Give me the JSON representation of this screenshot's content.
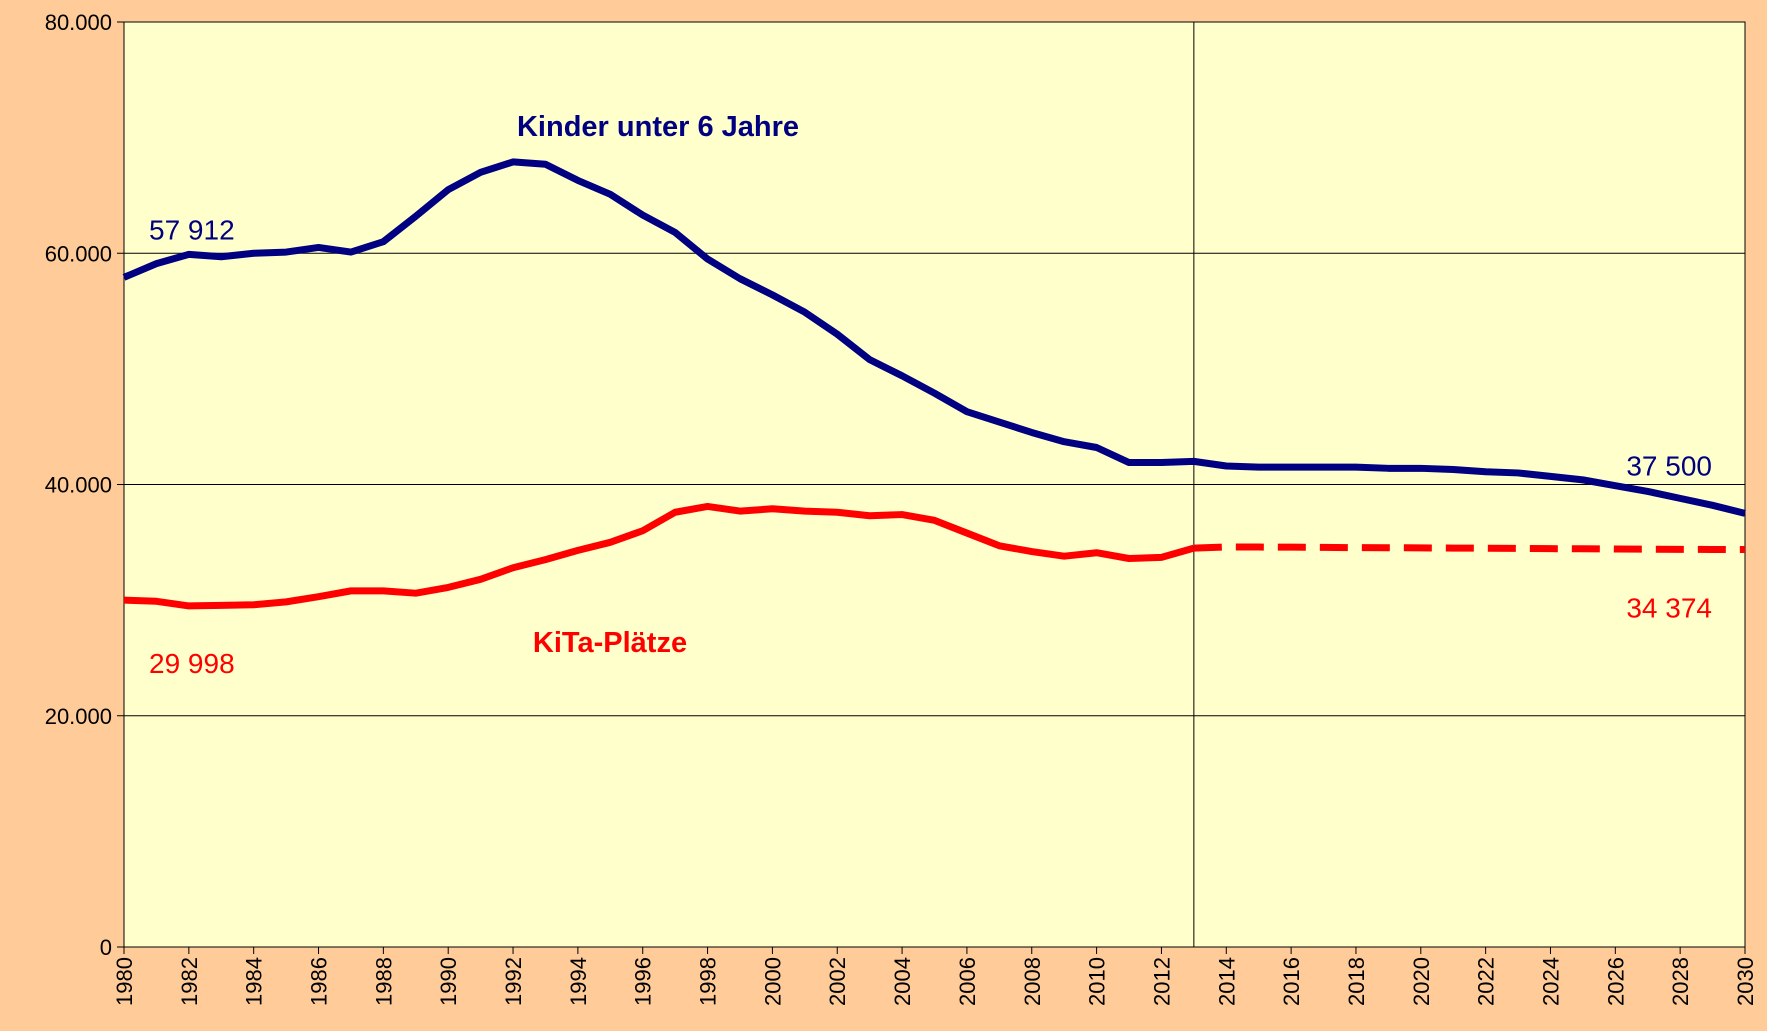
{
  "chart_data": {
    "type": "line",
    "x": [
      1980,
      1981,
      1982,
      1983,
      1984,
      1985,
      1986,
      1987,
      1988,
      1989,
      1990,
      1991,
      1992,
      1993,
      1994,
      1995,
      1996,
      1997,
      1998,
      1999,
      2000,
      2001,
      2002,
      2003,
      2004,
      2005,
      2006,
      2007,
      2008,
      2009,
      2010,
      2011,
      2012,
      2013,
      2014,
      2015,
      2016,
      2017,
      2018,
      2019,
      2020,
      2021,
      2022,
      2023,
      2024,
      2025,
      2026,
      2027,
      2028,
      2029,
      2030
    ],
    "series": [
      {
        "name": "Kinder unter 6 Jahre",
        "color": "#000080",
        "values": [
          57912,
          59100,
          59900,
          59700,
          60000,
          60100,
          60500,
          60100,
          61000,
          63200,
          65500,
          67000,
          67900,
          67700,
          66300,
          65100,
          63300,
          61800,
          59500,
          57800,
          56400,
          54900,
          53000,
          50800,
          49400,
          47900,
          46300,
          45400,
          44500,
          43700,
          43200,
          41900,
          41900,
          42000,
          41600,
          41500,
          41500,
          41500,
          41500,
          41400,
          41400,
          41300,
          41100,
          41000,
          40700,
          40400,
          39900,
          39400,
          38800,
          38200,
          37500
        ],
        "value_labels": [
          "57 912",
          null,
          null,
          null,
          null,
          null,
          null,
          null,
          null,
          null,
          null,
          null,
          null,
          null,
          null,
          null,
          null,
          null,
          null,
          null,
          null,
          null,
          null,
          null,
          null,
          null,
          null,
          null,
          null,
          null,
          null,
          null,
          null,
          null,
          null,
          null,
          null,
          null,
          null,
          null,
          null,
          null,
          null,
          null,
          null,
          null,
          null,
          null,
          null,
          null,
          "37 500"
        ]
      },
      {
        "name": "KiTa-Plätze",
        "color": "#FF0000",
        "dashed_from": 2013,
        "values": [
          29998,
          29900,
          29500,
          29550,
          29600,
          29850,
          30300,
          30800,
          30800,
          30600,
          31100,
          31800,
          32800,
          33500,
          34300,
          35000,
          36000,
          37600,
          38100,
          37700,
          37900,
          37700,
          37600,
          37300,
          37400,
          36900,
          35800,
          34700,
          34200,
          33800,
          34100,
          33600,
          33700,
          34500,
          34600,
          34590,
          34580,
          34560,
          34540,
          34530,
          34520,
          34500,
          34490,
          34470,
          34450,
          34440,
          34420,
          34410,
          34390,
          34380,
          34374
        ],
        "value_labels": [
          "29 998",
          null,
          null,
          null,
          null,
          null,
          null,
          null,
          null,
          null,
          null,
          null,
          null,
          null,
          null,
          null,
          null,
          null,
          null,
          null,
          null,
          null,
          null,
          null,
          null,
          null,
          null,
          null,
          null,
          null,
          null,
          null,
          null,
          null,
          null,
          null,
          null,
          null,
          null,
          null,
          null,
          null,
          null,
          null,
          null,
          null,
          null,
          null,
          null,
          null,
          "34 374"
        ]
      }
    ],
    "xlim": [
      1980,
      2030
    ],
    "xticks": [
      1980,
      1982,
      1984,
      1986,
      1988,
      1990,
      1992,
      1994,
      1996,
      1998,
      2000,
      2002,
      2004,
      2006,
      2008,
      2010,
      2012,
      2014,
      2016,
      2018,
      2020,
      2022,
      2024,
      2026,
      2028,
      2030
    ],
    "ylim": [
      0,
      80000
    ],
    "yticks": [
      0,
      {
        "value": 20000,
        "label": "20.000"
      },
      {
        "value": 40000,
        "label": "40.000"
      },
      {
        "value": 60000,
        "label": "60.000"
      },
      {
        "value": 80000,
        "label": "80.000"
      }
    ],
    "grid": true,
    "vline": 2013
  }
}
